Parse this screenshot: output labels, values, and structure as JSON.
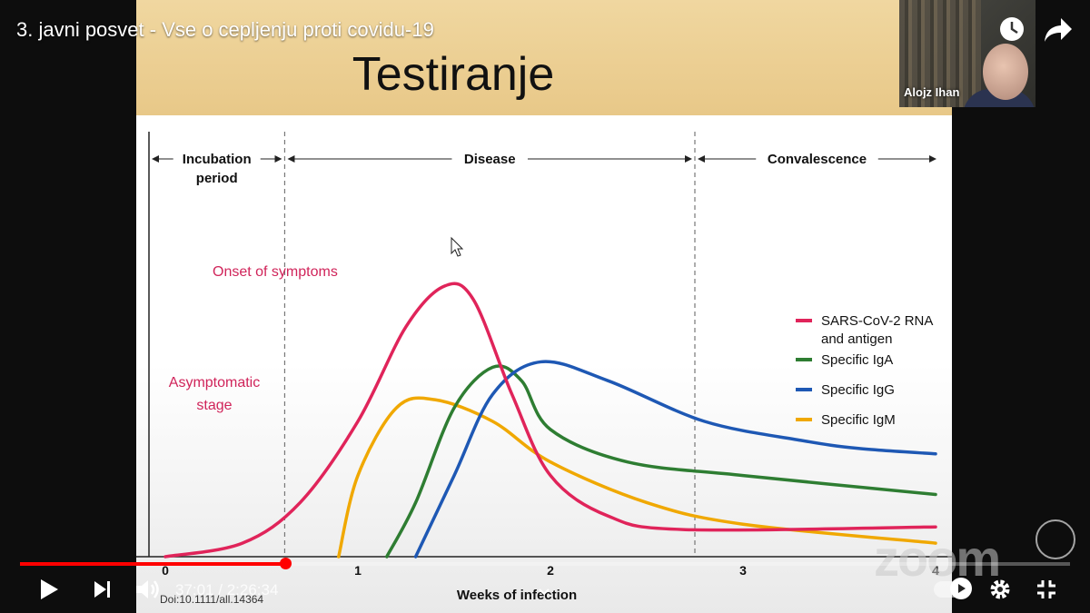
{
  "video": {
    "title": "3. javni posvet - Vse o cepljenju proti covidu-19",
    "current_time": "37:01",
    "duration": "2:26:34",
    "time_display": "37:01 / 2:26:34",
    "progress": 0.253
  },
  "webcam": {
    "name": "Alojz Ihan"
  },
  "slide": {
    "title": "Testiranje"
  },
  "watermark": {
    "text": "zoom"
  },
  "icons": {
    "watch_later": "clock-icon",
    "share": "share-arrow-icon",
    "play": "play-icon",
    "next": "skip-next-icon",
    "volume": "volume-icon",
    "settings": "gear-icon",
    "exit_fullscreen": "exit-fullscreen-icon",
    "autoplay": "autoplay-toggle-icon",
    "chevron": "chevron-down-icon"
  },
  "chart_data": {
    "type": "line",
    "xlabel": "Weeks of infection",
    "ylabel": "",
    "title": "",
    "x_ticks": [
      "0",
      "1",
      "2",
      "3",
      "4"
    ],
    "xlim": [
      0,
      4
    ],
    "phases": [
      {
        "label": "Incubation period",
        "start": 0,
        "end": 0.62
      },
      {
        "label": "Disease",
        "start": 0.62,
        "end": 2.75
      },
      {
        "label": "Convalescence",
        "start": 2.75,
        "end": 4
      }
    ],
    "annotations": [
      "Onset of symptoms",
      "Asymptomatic stage"
    ],
    "citation": "Doi:10.1111/all.14364",
    "series": [
      {
        "name": "SARS-CoV-2 RNA and antigen",
        "color": "#e0245a",
        "points": [
          [
            0,
            0
          ],
          [
            0.4,
            0.05
          ],
          [
            0.7,
            0.2
          ],
          [
            1.0,
            0.5
          ],
          [
            1.25,
            0.85
          ],
          [
            1.45,
            1.0
          ],
          [
            1.6,
            0.95
          ],
          [
            1.8,
            0.6
          ],
          [
            2.0,
            0.3
          ],
          [
            2.3,
            0.15
          ],
          [
            2.7,
            0.1
          ],
          [
            4.0,
            0.11
          ]
        ]
      },
      {
        "name": "Specific IgA",
        "color": "#2e7d32",
        "points": [
          [
            1.15,
            0
          ],
          [
            1.3,
            0.2
          ],
          [
            1.5,
            0.55
          ],
          [
            1.7,
            0.7
          ],
          [
            1.85,
            0.65
          ],
          [
            2.0,
            0.47
          ],
          [
            2.4,
            0.35
          ],
          [
            3.0,
            0.3
          ],
          [
            4.0,
            0.23
          ]
        ]
      },
      {
        "name": "Specific IgG",
        "color": "#1e58b4",
        "points": [
          [
            1.3,
            0
          ],
          [
            1.5,
            0.3
          ],
          [
            1.7,
            0.6
          ],
          [
            1.95,
            0.72
          ],
          [
            2.3,
            0.65
          ],
          [
            2.8,
            0.5
          ],
          [
            3.3,
            0.43
          ],
          [
            3.6,
            0.4
          ],
          [
            4.0,
            0.38
          ]
        ]
      },
      {
        "name": "Specific IgM",
        "color": "#f0a800",
        "points": [
          [
            0.9,
            0
          ],
          [
            1.0,
            0.3
          ],
          [
            1.2,
            0.55
          ],
          [
            1.4,
            0.58
          ],
          [
            1.7,
            0.5
          ],
          [
            2.0,
            0.35
          ],
          [
            2.5,
            0.2
          ],
          [
            3.0,
            0.12
          ],
          [
            4.0,
            0.05
          ]
        ]
      }
    ]
  }
}
